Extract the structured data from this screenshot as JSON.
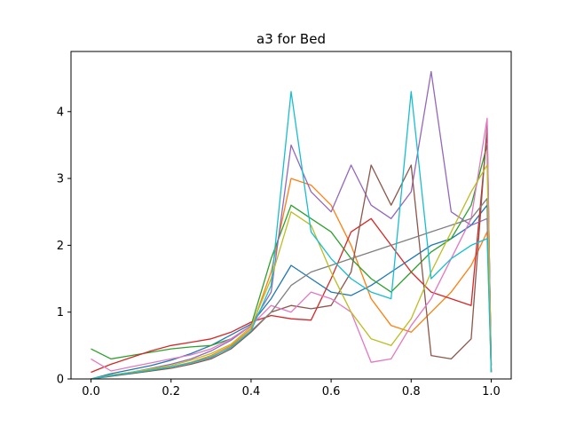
{
  "chart_data": {
    "type": "line",
    "title": "a3 for Bed",
    "xlabel": "",
    "ylabel": "",
    "xlim": [
      -0.05,
      1.05
    ],
    "ylim": [
      0,
      4.9
    ],
    "x_ticks": [
      0.0,
      0.2,
      0.4,
      0.6,
      0.8,
      1.0
    ],
    "x_tick_labels": [
      "0.0",
      "0.2",
      "0.4",
      "0.6",
      "0.8",
      "1.0"
    ],
    "y_ticks": [
      0,
      1,
      2,
      3,
      4
    ],
    "y_tick_labels": [
      "0",
      "1",
      "2",
      "3",
      "4"
    ],
    "grid": false,
    "legend": "none",
    "x": [
      0.0,
      0.05,
      0.1,
      0.15,
      0.2,
      0.25,
      0.3,
      0.35,
      0.4,
      0.45,
      0.5,
      0.55,
      0.6,
      0.65,
      0.7,
      0.75,
      0.8,
      0.85,
      0.9,
      0.95,
      0.99,
      1.0
    ],
    "series": [
      {
        "color": "#1f77b4",
        "values": [
          0.0,
          0.08,
          0.14,
          0.2,
          0.28,
          0.38,
          0.5,
          0.66,
          0.82,
          1.2,
          1.7,
          1.5,
          1.3,
          1.25,
          1.4,
          1.6,
          1.8,
          2.0,
          2.1,
          2.3,
          2.6,
          0.1
        ]
      },
      {
        "color": "#ff7f0e",
        "values": [
          0.0,
          0.05,
          0.08,
          0.12,
          0.18,
          0.25,
          0.35,
          0.5,
          0.75,
          1.6,
          3.0,
          2.9,
          2.6,
          2.0,
          1.2,
          0.8,
          0.7,
          1.0,
          1.3,
          1.7,
          2.2,
          0.1
        ]
      },
      {
        "color": "#2ca02c",
        "values": [
          0.45,
          0.3,
          0.35,
          0.4,
          0.45,
          0.48,
          0.5,
          0.6,
          0.8,
          1.8,
          2.6,
          2.4,
          2.2,
          1.8,
          1.5,
          1.3,
          1.6,
          1.9,
          2.1,
          2.6,
          3.5,
          0.2
        ]
      },
      {
        "color": "#d62728",
        "values": [
          0.1,
          0.22,
          0.32,
          0.42,
          0.5,
          0.55,
          0.6,
          0.7,
          0.85,
          0.95,
          0.9,
          0.88,
          1.5,
          2.2,
          2.4,
          2.0,
          1.6,
          1.3,
          1.2,
          1.1,
          3.7,
          0.2
        ]
      },
      {
        "color": "#9467bd",
        "values": [
          0.0,
          0.06,
          0.1,
          0.16,
          0.22,
          0.3,
          0.42,
          0.58,
          0.8,
          1.3,
          3.5,
          2.8,
          2.5,
          3.2,
          2.6,
          2.4,
          2.8,
          4.6,
          2.5,
          2.3,
          2.4,
          0.1
        ]
      },
      {
        "color": "#8c564b",
        "values": [
          0.0,
          0.04,
          0.08,
          0.12,
          0.16,
          0.22,
          0.3,
          0.45,
          0.7,
          1.0,
          1.1,
          1.05,
          1.1,
          1.6,
          3.2,
          2.6,
          3.2,
          0.35,
          0.3,
          0.6,
          3.8,
          0.1
        ]
      },
      {
        "color": "#e377c2",
        "values": [
          0.3,
          0.12,
          0.18,
          0.24,
          0.3,
          0.36,
          0.45,
          0.6,
          0.8,
          1.1,
          1.0,
          1.3,
          1.2,
          1.0,
          0.25,
          0.3,
          0.8,
          1.2,
          1.8,
          2.4,
          3.9,
          0.1
        ]
      },
      {
        "color": "#7f7f7f",
        "values": [
          0.0,
          0.05,
          0.1,
          0.14,
          0.18,
          0.24,
          0.32,
          0.48,
          0.72,
          1.0,
          1.4,
          1.6,
          1.7,
          1.8,
          1.9,
          2.0,
          2.1,
          2.2,
          2.3,
          2.4,
          2.7,
          0.1
        ]
      },
      {
        "color": "#bcbd22",
        "values": [
          0.0,
          0.06,
          0.1,
          0.15,
          0.2,
          0.28,
          0.38,
          0.52,
          0.78,
          1.5,
          2.5,
          2.3,
          1.6,
          1.0,
          0.6,
          0.5,
          0.9,
          1.6,
          2.2,
          2.8,
          3.2,
          0.1
        ]
      },
      {
        "color": "#17becf",
        "values": [
          0.0,
          0.05,
          0.09,
          0.13,
          0.18,
          0.24,
          0.33,
          0.47,
          0.72,
          1.4,
          4.3,
          2.2,
          1.8,
          1.5,
          1.3,
          1.2,
          4.3,
          1.5,
          1.8,
          2.0,
          2.1,
          0.1
        ]
      }
    ]
  }
}
